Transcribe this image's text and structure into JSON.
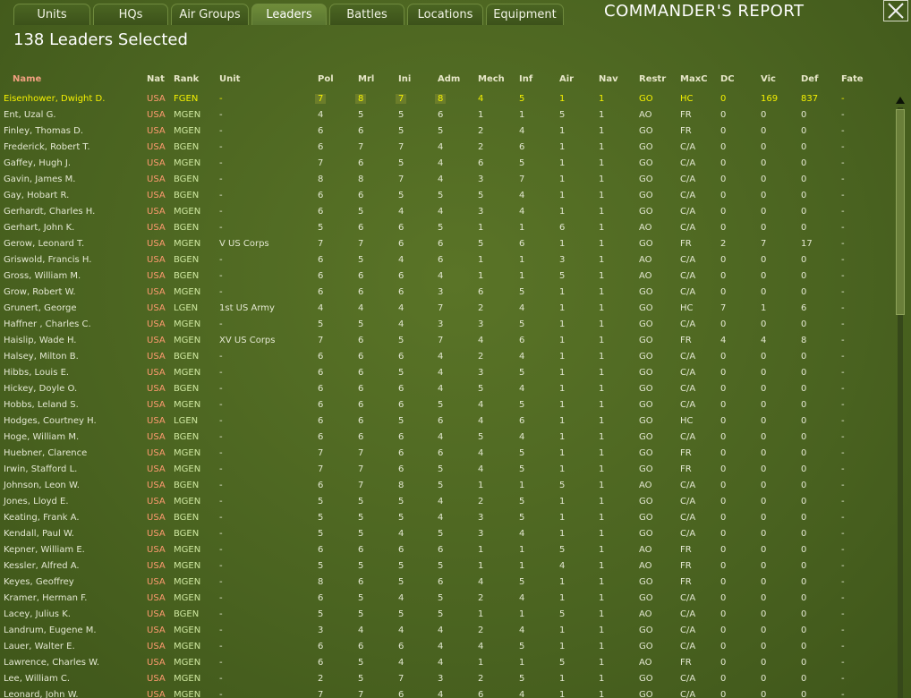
{
  "tabs": [
    {
      "label": "Units",
      "active": false
    },
    {
      "label": "HQs",
      "active": false
    },
    {
      "label": "Air Groups",
      "active": false
    },
    {
      "label": "Leaders",
      "active": true
    },
    {
      "label": "Battles",
      "active": false
    },
    {
      "label": "Locations",
      "active": false
    },
    {
      "label": "Equipment",
      "active": false
    }
  ],
  "window_title": "COMMANDER'S REPORT",
  "selected_count": "138 Leaders Selected",
  "columns": [
    "Name",
    "Nat",
    "Rank",
    "Unit",
    "Pol",
    "Mrl",
    "Ini",
    "Adm",
    "Mech",
    "Inf",
    "Air",
    "Nav",
    "Restr",
    "MaxC",
    "DC",
    "Vic",
    "Def",
    "Fate"
  ],
  "rows": [
    [
      "Eisenhower, Dwight D.",
      "USA",
      "FGEN",
      "-",
      "7",
      "8",
      "7",
      "8",
      "4",
      "5",
      "1",
      "1",
      "GO",
      "HC",
      "0",
      "169",
      "837",
      "-"
    ],
    [
      "Ent, Uzal G.",
      "USA",
      "MGEN",
      "-",
      "4",
      "5",
      "5",
      "6",
      "1",
      "1",
      "5",
      "1",
      "AO",
      "FR",
      "0",
      "0",
      "0",
      "-"
    ],
    [
      "Finley, Thomas D.",
      "USA",
      "MGEN",
      "-",
      "6",
      "6",
      "5",
      "5",
      "2",
      "4",
      "1",
      "1",
      "GO",
      "FR",
      "0",
      "0",
      "0",
      "-"
    ],
    [
      "Frederick, Robert T.",
      "USA",
      "BGEN",
      "-",
      "6",
      "7",
      "7",
      "4",
      "2",
      "6",
      "1",
      "1",
      "GO",
      "C/A",
      "0",
      "0",
      "0",
      "-"
    ],
    [
      "Gaffey, Hugh J.",
      "USA",
      "MGEN",
      "-",
      "7",
      "6",
      "5",
      "4",
      "6",
      "5",
      "1",
      "1",
      "GO",
      "C/A",
      "0",
      "0",
      "0",
      "-"
    ],
    [
      "Gavin, James M.",
      "USA",
      "BGEN",
      "-",
      "8",
      "8",
      "7",
      "4",
      "3",
      "7",
      "1",
      "1",
      "GO",
      "C/A",
      "0",
      "0",
      "0",
      "-"
    ],
    [
      "Gay, Hobart R.",
      "USA",
      "BGEN",
      "-",
      "6",
      "6",
      "5",
      "5",
      "5",
      "4",
      "1",
      "1",
      "GO",
      "C/A",
      "0",
      "0",
      "0",
      "-"
    ],
    [
      "Gerhardt, Charles H.",
      "USA",
      "MGEN",
      "-",
      "6",
      "5",
      "4",
      "4",
      "3",
      "4",
      "1",
      "1",
      "GO",
      "C/A",
      "0",
      "0",
      "0",
      "-"
    ],
    [
      "Gerhart, John K.",
      "USA",
      "BGEN",
      "-",
      "5",
      "6",
      "6",
      "5",
      "1",
      "1",
      "6",
      "1",
      "AO",
      "C/A",
      "0",
      "0",
      "0",
      "-"
    ],
    [
      "Gerow, Leonard T.",
      "USA",
      "MGEN",
      "V US Corps",
      "7",
      "7",
      "6",
      "6",
      "5",
      "6",
      "1",
      "1",
      "GO",
      "FR",
      "2",
      "7",
      "17",
      "-"
    ],
    [
      "Griswold, Francis H.",
      "USA",
      "BGEN",
      "-",
      "6",
      "5",
      "4",
      "6",
      "1",
      "1",
      "3",
      "1",
      "AO",
      "C/A",
      "0",
      "0",
      "0",
      "-"
    ],
    [
      "Gross, William M.",
      "USA",
      "BGEN",
      "-",
      "6",
      "6",
      "6",
      "4",
      "1",
      "1",
      "5",
      "1",
      "AO",
      "C/A",
      "0",
      "0",
      "0",
      "-"
    ],
    [
      "Grow, Robert W.",
      "USA",
      "MGEN",
      "-",
      "6",
      "6",
      "6",
      "3",
      "6",
      "5",
      "1",
      "1",
      "GO",
      "C/A",
      "0",
      "0",
      "0",
      "-"
    ],
    [
      "Grunert, George",
      "USA",
      "LGEN",
      "1st US Army",
      "4",
      "4",
      "4",
      "7",
      "2",
      "4",
      "1",
      "1",
      "GO",
      "HC",
      "7",
      "1",
      "6",
      "-"
    ],
    [
      "Haffner , Charles C.",
      "USA",
      "MGEN",
      "-",
      "5",
      "5",
      "4",
      "3",
      "3",
      "5",
      "1",
      "1",
      "GO",
      "C/A",
      "0",
      "0",
      "0",
      "-"
    ],
    [
      "Haislip, Wade H.",
      "USA",
      "MGEN",
      "XV US Corps",
      "7",
      "6",
      "5",
      "7",
      "4",
      "6",
      "1",
      "1",
      "GO",
      "FR",
      "4",
      "4",
      "8",
      "-"
    ],
    [
      "Halsey, Milton B.",
      "USA",
      "BGEN",
      "-",
      "6",
      "6",
      "6",
      "4",
      "2",
      "4",
      "1",
      "1",
      "GO",
      "C/A",
      "0",
      "0",
      "0",
      "-"
    ],
    [
      "Hibbs, Louis E.",
      "USA",
      "MGEN",
      "-",
      "6",
      "6",
      "5",
      "4",
      "3",
      "5",
      "1",
      "1",
      "GO",
      "C/A",
      "0",
      "0",
      "0",
      "-"
    ],
    [
      "Hickey, Doyle O.",
      "USA",
      "BGEN",
      "-",
      "6",
      "6",
      "6",
      "4",
      "5",
      "4",
      "1",
      "1",
      "GO",
      "C/A",
      "0",
      "0",
      "0",
      "-"
    ],
    [
      "Hobbs, Leland S.",
      "USA",
      "MGEN",
      "-",
      "6",
      "6",
      "6",
      "5",
      "4",
      "5",
      "1",
      "1",
      "GO",
      "C/A",
      "0",
      "0",
      "0",
      "-"
    ],
    [
      "Hodges, Courtney H.",
      "USA",
      "LGEN",
      "-",
      "6",
      "6",
      "5",
      "6",
      "4",
      "6",
      "1",
      "1",
      "GO",
      "HC",
      "0",
      "0",
      "0",
      "-"
    ],
    [
      "Hoge, William M.",
      "USA",
      "BGEN",
      "-",
      "6",
      "6",
      "6",
      "4",
      "5",
      "4",
      "1",
      "1",
      "GO",
      "C/A",
      "0",
      "0",
      "0",
      "-"
    ],
    [
      "Huebner, Clarence",
      "USA",
      "MGEN",
      "-",
      "7",
      "7",
      "6",
      "6",
      "4",
      "5",
      "1",
      "1",
      "GO",
      "FR",
      "0",
      "0",
      "0",
      "-"
    ],
    [
      "Irwin, Stafford L.",
      "USA",
      "MGEN",
      "-",
      "7",
      "7",
      "6",
      "5",
      "4",
      "5",
      "1",
      "1",
      "GO",
      "FR",
      "0",
      "0",
      "0",
      "-"
    ],
    [
      "Johnson, Leon W.",
      "USA",
      "BGEN",
      "-",
      "6",
      "7",
      "8",
      "5",
      "1",
      "1",
      "5",
      "1",
      "AO",
      "C/A",
      "0",
      "0",
      "0",
      "-"
    ],
    [
      "Jones, Lloyd E.",
      "USA",
      "MGEN",
      "-",
      "5",
      "5",
      "5",
      "4",
      "2",
      "5",
      "1",
      "1",
      "GO",
      "C/A",
      "0",
      "0",
      "0",
      "-"
    ],
    [
      "Keating, Frank A.",
      "USA",
      "BGEN",
      "-",
      "5",
      "5",
      "5",
      "4",
      "3",
      "5",
      "1",
      "1",
      "GO",
      "C/A",
      "0",
      "0",
      "0",
      "-"
    ],
    [
      "Kendall, Paul W.",
      "USA",
      "BGEN",
      "-",
      "5",
      "5",
      "4",
      "5",
      "3",
      "4",
      "1",
      "1",
      "GO",
      "C/A",
      "0",
      "0",
      "0",
      "-"
    ],
    [
      "Kepner, William E.",
      "USA",
      "MGEN",
      "-",
      "6",
      "6",
      "6",
      "6",
      "1",
      "1",
      "5",
      "1",
      "AO",
      "FR",
      "0",
      "0",
      "0",
      "-"
    ],
    [
      "Kessler, Alfred A.",
      "USA",
      "MGEN",
      "-",
      "5",
      "5",
      "5",
      "5",
      "1",
      "1",
      "4",
      "1",
      "AO",
      "FR",
      "0",
      "0",
      "0",
      "-"
    ],
    [
      "Keyes, Geoffrey",
      "USA",
      "MGEN",
      "-",
      "8",
      "6",
      "5",
      "6",
      "4",
      "5",
      "1",
      "1",
      "GO",
      "FR",
      "0",
      "0",
      "0",
      "-"
    ],
    [
      "Kramer, Herman F.",
      "USA",
      "MGEN",
      "-",
      "6",
      "5",
      "4",
      "5",
      "2",
      "4",
      "1",
      "1",
      "GO",
      "C/A",
      "0",
      "0",
      "0",
      "-"
    ],
    [
      "Lacey, Julius K.",
      "USA",
      "BGEN",
      "-",
      "5",
      "5",
      "5",
      "5",
      "1",
      "1",
      "5",
      "1",
      "AO",
      "C/A",
      "0",
      "0",
      "0",
      "-"
    ],
    [
      "Landrum, Eugene M.",
      "USA",
      "MGEN",
      "-",
      "3",
      "4",
      "4",
      "4",
      "2",
      "4",
      "1",
      "1",
      "GO",
      "C/A",
      "0",
      "0",
      "0",
      "-"
    ],
    [
      "Lauer, Walter E.",
      "USA",
      "MGEN",
      "-",
      "6",
      "6",
      "6",
      "4",
      "4",
      "5",
      "1",
      "1",
      "GO",
      "C/A",
      "0",
      "0",
      "0",
      "-"
    ],
    [
      "Lawrence, Charles W.",
      "USA",
      "MGEN",
      "-",
      "6",
      "5",
      "4",
      "4",
      "1",
      "1",
      "5",
      "1",
      "AO",
      "FR",
      "0",
      "0",
      "0",
      "-"
    ],
    [
      "Lee, William C.",
      "USA",
      "MGEN",
      "-",
      "2",
      "5",
      "7",
      "3",
      "2",
      "5",
      "1",
      "1",
      "GO",
      "C/A",
      "0",
      "0",
      "0",
      "-"
    ],
    [
      "Leonard, John W.",
      "USA",
      "MGEN",
      "-",
      "7",
      "7",
      "6",
      "4",
      "6",
      "4",
      "1",
      "1",
      "GO",
      "C/A",
      "0",
      "0",
      "0",
      "-"
    ]
  ],
  "highlight_row": 0,
  "scroll_position": 0.0,
  "colors": {
    "background": "#4f6a1f",
    "nat": "#ff9a70",
    "highlight": "#f4f000",
    "name_header": "#f0a080"
  },
  "icons": {
    "close": "close-icon",
    "scroll_up": "scroll-up-arrow-icon"
  }
}
